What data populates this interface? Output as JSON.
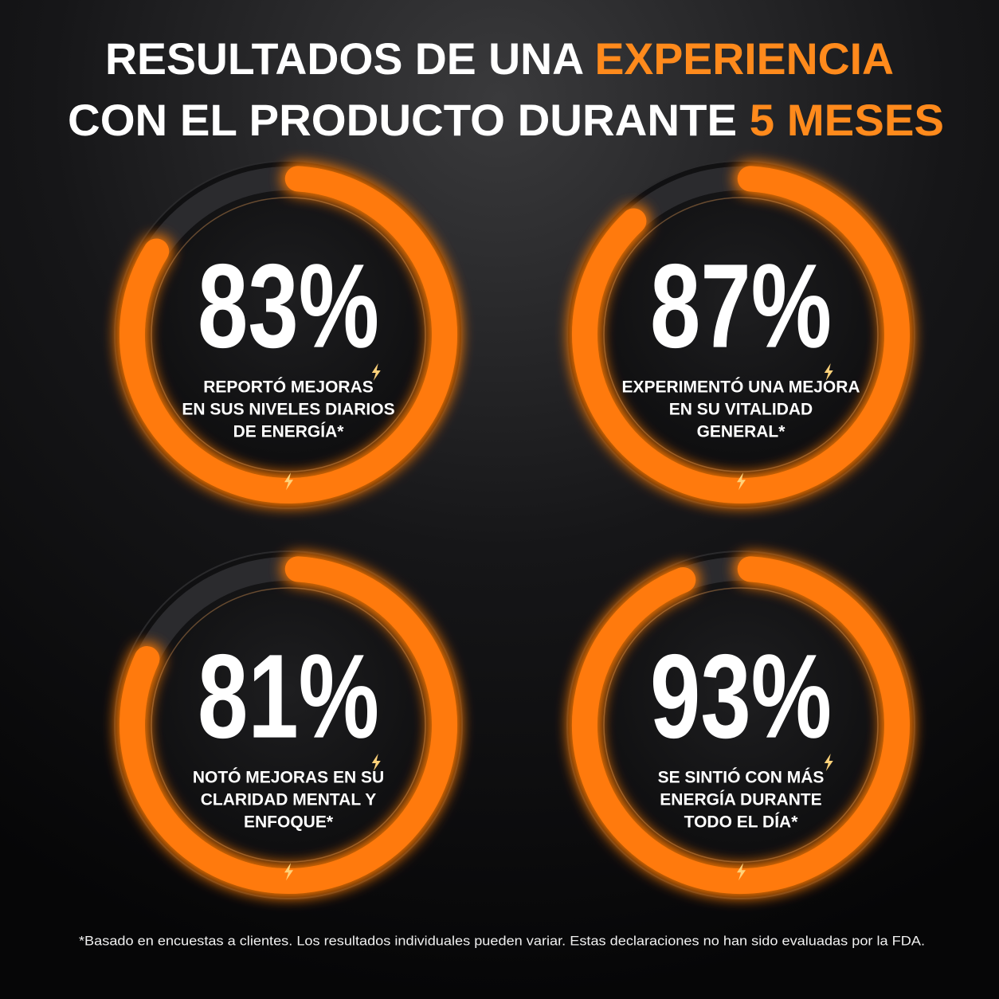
{
  "header": {
    "title_line1": "RESULTADOS DE UNA",
    "title_line1_accent": "EXPERIENCIA",
    "title_line2": "CON EL PRODUCTO DURANTE",
    "title_line2_accent": "5 MESES"
  },
  "chart_data": [
    {
      "type": "donut",
      "values": [
        83
      ],
      "value_labels": [
        "83%"
      ],
      "lim": [
        0,
        100
      ],
      "color": "#ff7a10",
      "caption": [
        "REPORTÓ MEJORAS",
        "EN SUS NIVELES DIARIOS",
        "DE ENERGÍA*"
      ]
    },
    {
      "type": "donut",
      "values": [
        87
      ],
      "value_labels": [
        "87%"
      ],
      "lim": [
        0,
        100
      ],
      "color": "#ff7a10",
      "caption": [
        "EXPERIMENTÓ UNA MEJORA",
        "EN SU VITALIDAD",
        "GENERAL*"
      ]
    },
    {
      "type": "donut",
      "values": [
        81
      ],
      "value_labels": [
        "81%"
      ],
      "lim": [
        0,
        100
      ],
      "color": "#ff7a10",
      "caption": [
        "NOTÓ MEJORAS EN SU",
        "CLARIDAD MENTAL Y",
        "ENFOQUE*"
      ]
    },
    {
      "type": "donut",
      "values": [
        93
      ],
      "value_labels": [
        "93%"
      ],
      "lim": [
        0,
        100
      ],
      "color": "#ff7a10",
      "caption": [
        "SE SINTIÓ CON MÁS",
        "ENERGÍA DURANTE",
        "TODO EL DÍA*"
      ]
    }
  ],
  "footnote": "*Basado en encuestas a clientes. Los resultados individuales pueden variar. Estas declaraciones no han sido evaluadas por la FDA."
}
